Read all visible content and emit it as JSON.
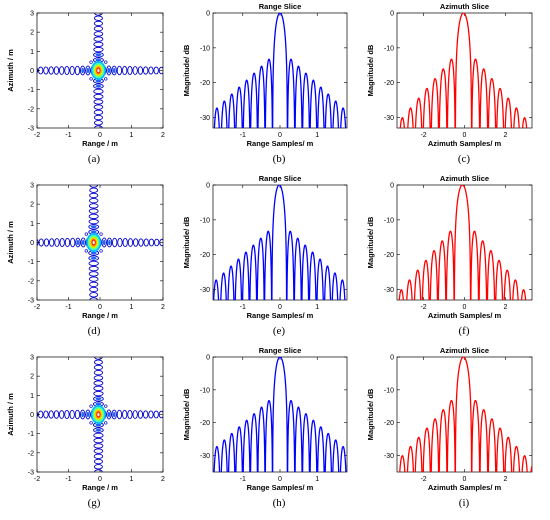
{
  "chart_data": [
    {
      "type": "heatmap",
      "panel": "(a)",
      "xlabel": "Range / m",
      "ylabel": "Azimuth / m",
      "xlim": [
        -2,
        2
      ],
      "ylim": [
        -3,
        3
      ],
      "xticks": [
        -2,
        -1,
        0,
        1,
        2
      ],
      "yticks": [
        -3,
        -2,
        -1,
        0,
        1,
        2,
        3
      ],
      "peak": {
        "x": -0.05,
        "y": 0.0
      }
    },
    {
      "type": "line",
      "panel": "(b)",
      "title": "Range Slice",
      "xlabel": "Range Samples/ m",
      "ylabel": "Magnitude/ dB",
      "xlim": [
        -1.8,
        1.8
      ],
      "ylim": [
        -33,
        0
      ],
      "xticks": [
        -1,
        0,
        1
      ],
      "yticks": [
        -30,
        -20,
        -10,
        0
      ],
      "color": "#0000ff",
      "peak_x": 0.0,
      "lobe_period": 0.2,
      "first_sidelobe_db": -13.3,
      "decay_db_per_m": 10
    },
    {
      "type": "line",
      "panel": "(c)",
      "title": "Azimuth Slice",
      "xlabel": "Azimuth Samples/ m",
      "ylabel": "Magnitude/ dB",
      "xlim": [
        -3.3,
        3.3
      ],
      "ylim": [
        -33,
        0
      ],
      "xticks": [
        -2,
        0,
        2
      ],
      "yticks": [
        -30,
        -20,
        -10,
        0
      ],
      "color": "#ff0000",
      "peak_x": -0.05,
      "lobe_period": 0.4,
      "first_sidelobe_db": -13.3,
      "decay_db_per_m": 7
    },
    {
      "type": "heatmap",
      "panel": "(d)",
      "xlabel": "Range / m",
      "ylabel": "Azimuth / m",
      "xlim": [
        -2,
        2
      ],
      "ylim": [
        -3,
        3
      ],
      "xticks": [
        -2,
        -1,
        0,
        1,
        2
      ],
      "yticks": [
        -3,
        -2,
        -1,
        0,
        1,
        2,
        3
      ],
      "peak": {
        "x": -0.2,
        "y": 0.0
      }
    },
    {
      "type": "line",
      "panel": "(e)",
      "title": "Range Slice",
      "xlabel": "Range Samples/ m",
      "ylabel": "Magnitude/ dB",
      "xlim": [
        -1.8,
        1.8
      ],
      "ylim": [
        -33,
        0
      ],
      "xticks": [
        -1,
        0,
        1
      ],
      "yticks": [
        -30,
        -20,
        -10,
        0
      ],
      "color": "#0000ff",
      "peak_x": -0.02,
      "lobe_period": 0.2,
      "first_sidelobe_db": -13.3,
      "decay_db_per_m": 10
    },
    {
      "type": "line",
      "panel": "(f)",
      "title": "Azimuth Slice",
      "xlabel": "Azimuth Samples/ m",
      "ylabel": "Magnitude/ dB",
      "xlim": [
        -3.3,
        3.3
      ],
      "ylim": [
        -33,
        0
      ],
      "xticks": [
        -2,
        0,
        2
      ],
      "yticks": [
        -30,
        -20,
        -10,
        0
      ],
      "color": "#ff0000",
      "peak_x": -0.1,
      "lobe_period": 0.4,
      "first_sidelobe_db": -13.3,
      "decay_db_per_m": 7
    },
    {
      "type": "heatmap",
      "panel": "(g)",
      "xlabel": "Range / m",
      "ylabel": "Azimuth / m",
      "xlim": [
        -2,
        2
      ],
      "ylim": [
        -3,
        3
      ],
      "xticks": [
        -2,
        -1,
        0,
        1,
        2
      ],
      "yticks": [
        -3,
        -2,
        -1,
        0,
        1,
        2,
        3
      ],
      "peak": {
        "x": -0.05,
        "y": 0.0
      }
    },
    {
      "type": "line",
      "panel": "(h)",
      "title": "Range Slice",
      "xlabel": "Range Samples/ m",
      "ylabel": "Magnitude/ dB",
      "xlim": [
        -1.8,
        1.8
      ],
      "ylim": [
        -35,
        0
      ],
      "xticks": [
        -1,
        0,
        1
      ],
      "yticks": [
        -30,
        -20,
        -10,
        0
      ],
      "color": "#0000ff",
      "peak_x": 0.0,
      "lobe_period": 0.2,
      "first_sidelobe_db": -13.3,
      "decay_db_per_m": 10
    },
    {
      "type": "line",
      "panel": "(i)",
      "title": "Azimuth Slice",
      "xlabel": "Azimuth Samples/ m",
      "ylabel": "Magnitude/ dB",
      "xlim": [
        -3.3,
        3.3
      ],
      "ylim": [
        -35,
        0
      ],
      "xticks": [
        -2,
        0,
        2
      ],
      "yticks": [
        -30,
        -20,
        -10,
        0
      ],
      "color": "#ff0000",
      "peak_x": -0.05,
      "lobe_period": 0.4,
      "first_sidelobe_db": -13.3,
      "decay_db_per_m": 7
    }
  ]
}
